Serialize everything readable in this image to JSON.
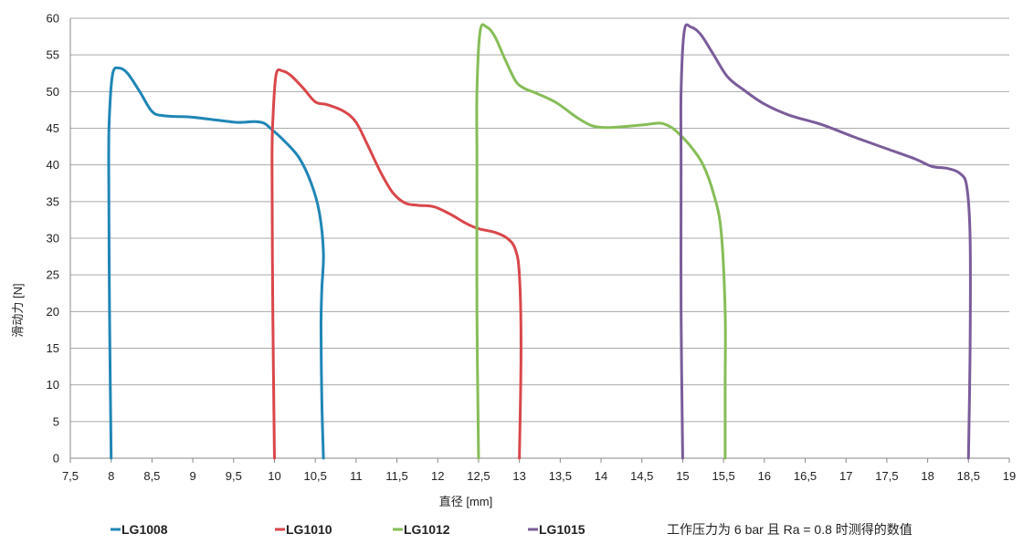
{
  "chart_data": {
    "type": "line",
    "title": "",
    "xlabel": "直径 [mm]",
    "ylabel": "滑动力 [N]",
    "xlim": [
      7.5,
      19
    ],
    "ylim": [
      0,
      60
    ],
    "x_ticks": [
      7.5,
      8,
      8.5,
      9,
      9.5,
      10,
      10.5,
      11,
      11.5,
      12,
      12.5,
      13,
      13.5,
      14,
      14.5,
      15,
      15.5,
      16,
      16.5,
      17,
      17.5,
      18,
      18.5,
      19
    ],
    "x_tick_labels": [
      "7,5",
      "8",
      "8,5",
      "9",
      "9,5",
      "10",
      "10,5",
      "11",
      "11,5",
      "12",
      "12,5",
      "13",
      "13,5",
      "14",
      "14,5",
      "15",
      "15,5",
      "16",
      "16,5",
      "17",
      "17,5",
      "18",
      "18,5",
      "19"
    ],
    "y_ticks": [
      0,
      5,
      10,
      15,
      20,
      25,
      30,
      35,
      40,
      45,
      50,
      55,
      60
    ],
    "y_tick_labels": [
      "0",
      "5",
      "10",
      "15",
      "20",
      "25",
      "30",
      "35",
      "40",
      "45",
      "50",
      "55",
      "60"
    ],
    "grid": "horizontal",
    "legend_position": "bottom",
    "annotation": "工作压力为 6 bar 且 Ra = 0.8 时测得的数值",
    "series": [
      {
        "name": "LG1008",
        "color": "#1f86b5",
        "points": [
          [
            8.0,
            0
          ],
          [
            7.98,
            20
          ],
          [
            7.97,
            40
          ],
          [
            7.98,
            47
          ],
          [
            8.02,
            52.5
          ],
          [
            8.1,
            53.2
          ],
          [
            8.2,
            52.5
          ],
          [
            8.35,
            50
          ],
          [
            8.5,
            47.3
          ],
          [
            8.65,
            46.7
          ],
          [
            9.0,
            46.5
          ],
          [
            9.3,
            46.1
          ],
          [
            9.55,
            45.8
          ],
          [
            9.75,
            45.9
          ],
          [
            9.87,
            45.7
          ],
          [
            9.95,
            45.0
          ],
          [
            10.1,
            43.5
          ],
          [
            10.3,
            41
          ],
          [
            10.45,
            37.5
          ],
          [
            10.55,
            33.5
          ],
          [
            10.6,
            28
          ],
          [
            10.58,
            23
          ],
          [
            10.57,
            18
          ],
          [
            10.58,
            8
          ],
          [
            10.6,
            0
          ]
        ]
      },
      {
        "name": "LG1010",
        "color": "#d9474a",
        "points": [
          [
            10.0,
            0
          ],
          [
            9.98,
            20
          ],
          [
            9.97,
            40
          ],
          [
            9.98,
            46
          ],
          [
            10.02,
            52.3
          ],
          [
            10.1,
            52.8
          ],
          [
            10.2,
            52.2
          ],
          [
            10.35,
            50.5
          ],
          [
            10.5,
            48.6
          ],
          [
            10.65,
            48.2
          ],
          [
            10.85,
            47.3
          ],
          [
            11.0,
            45.8
          ],
          [
            11.15,
            42.5
          ],
          [
            11.3,
            39
          ],
          [
            11.45,
            36.2
          ],
          [
            11.6,
            34.8
          ],
          [
            11.75,
            34.5
          ],
          [
            11.95,
            34.3
          ],
          [
            12.15,
            33.3
          ],
          [
            12.35,
            32
          ],
          [
            12.5,
            31.3
          ],
          [
            12.7,
            30.8
          ],
          [
            12.85,
            30
          ],
          [
            12.95,
            28.5
          ],
          [
            13.0,
            25
          ],
          [
            13.02,
            15
          ],
          [
            13.0,
            0
          ]
        ]
      },
      {
        "name": "LG1012",
        "color": "#86bd58",
        "points": [
          [
            12.5,
            0
          ],
          [
            12.48,
            20
          ],
          [
            12.48,
            40
          ],
          [
            12.48,
            50
          ],
          [
            12.52,
            58.3
          ],
          [
            12.6,
            58.8
          ],
          [
            12.7,
            57.5
          ],
          [
            12.82,
            54.5
          ],
          [
            12.95,
            51.5
          ],
          [
            13.05,
            50.5
          ],
          [
            13.2,
            49.8
          ],
          [
            13.45,
            48.5
          ],
          [
            13.7,
            46.5
          ],
          [
            13.9,
            45.3
          ],
          [
            14.1,
            45.1
          ],
          [
            14.35,
            45.3
          ],
          [
            14.55,
            45.5
          ],
          [
            14.72,
            45.7
          ],
          [
            14.85,
            45.2
          ],
          [
            14.95,
            44.3
          ],
          [
            15.1,
            42.5
          ],
          [
            15.25,
            40
          ],
          [
            15.38,
            36
          ],
          [
            15.47,
            31
          ],
          [
            15.52,
            20
          ],
          [
            15.52,
            10
          ],
          [
            15.52,
            0
          ]
        ]
      },
      {
        "name": "LG1015",
        "color": "#7b5c9a",
        "points": [
          [
            15.0,
            0
          ],
          [
            14.98,
            20
          ],
          [
            14.98,
            40
          ],
          [
            14.98,
            50
          ],
          [
            15.02,
            58.3
          ],
          [
            15.1,
            58.8
          ],
          [
            15.22,
            57.8
          ],
          [
            15.38,
            55
          ],
          [
            15.55,
            52
          ],
          [
            15.75,
            50.2
          ],
          [
            16.0,
            48.3
          ],
          [
            16.3,
            46.8
          ],
          [
            16.7,
            45.5
          ],
          [
            17.1,
            43.8
          ],
          [
            17.5,
            42.2
          ],
          [
            17.85,
            40.8
          ],
          [
            18.05,
            39.8
          ],
          [
            18.25,
            39.5
          ],
          [
            18.4,
            38.8
          ],
          [
            18.48,
            37
          ],
          [
            18.52,
            30
          ],
          [
            18.52,
            15
          ],
          [
            18.5,
            0
          ]
        ]
      }
    ]
  }
}
